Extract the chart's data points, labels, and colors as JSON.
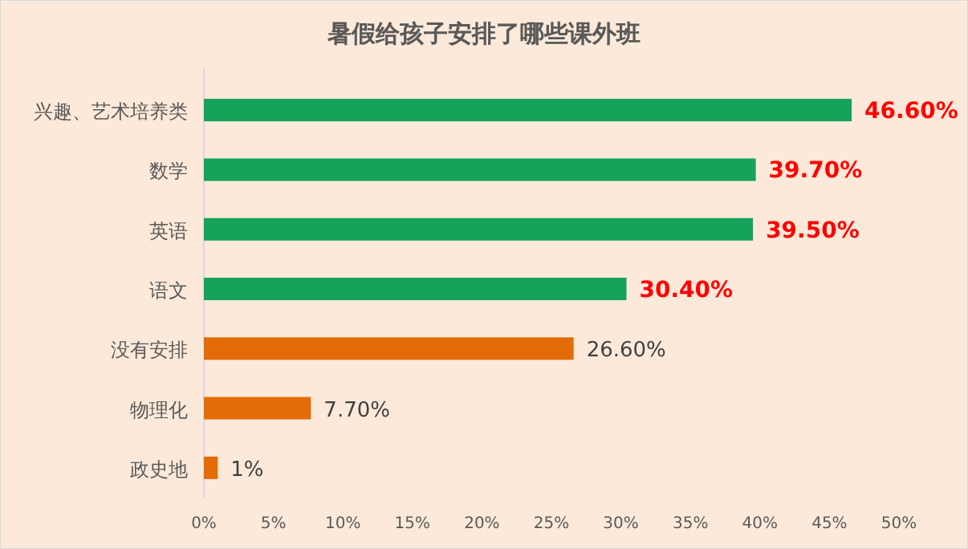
{
  "chart_data": {
    "type": "bar",
    "orientation": "horizontal",
    "title": "暑假给孩子安排了哪些课外班",
    "categories": [
      "兴趣、艺术培养类",
      "数学",
      "英语",
      "语文",
      "没有安排",
      "物理化",
      "政史地"
    ],
    "values": [
      46.6,
      39.7,
      39.5,
      30.4,
      26.6,
      7.7,
      1
    ],
    "colors": [
      "#15a35a",
      "#15a35a",
      "#15a35a",
      "#15a35a",
      "#e36c09",
      "#e36c09",
      "#e36c09"
    ],
    "value_labels": [
      "46.60%",
      "39.70%",
      "39.50%",
      "30.40%",
      "26.60%",
      "7.70%",
      "1%"
    ],
    "xlim": [
      0,
      50
    ],
    "xticks": [
      {
        "value": 0,
        "label": "0%"
      },
      {
        "value": 5,
        "label": "5%"
      },
      {
        "value": 10,
        "label": "10%"
      },
      {
        "value": 15,
        "label": "15%"
      },
      {
        "value": 20,
        "label": "20%"
      },
      {
        "value": 25,
        "label": "25%"
      },
      {
        "value": 30,
        "label": "30%"
      },
      {
        "value": 35,
        "label": "35%"
      },
      {
        "value": 40,
        "label": "40%"
      },
      {
        "value": 45,
        "label": "45%"
      },
      {
        "value": 50,
        "label": "50%"
      }
    ],
    "grid": false
  }
}
